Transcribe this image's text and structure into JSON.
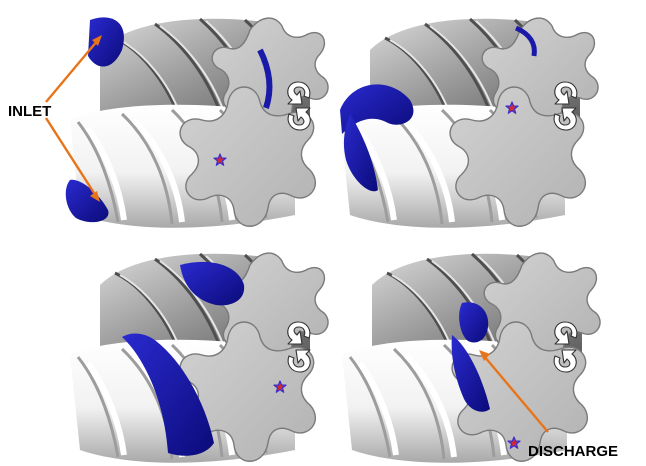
{
  "labels": {
    "inlet": "INLET",
    "discharge": "DISCHARGE"
  },
  "colors": {
    "pocket": "#1a1aa8",
    "pocket_dark": "#0b0b6e",
    "male_rotor_light": "#f7f7f7",
    "male_rotor_shade": "#bdbdbd",
    "female_rotor_light": "#d6d6d6",
    "female_rotor_dark": "#6f6f6f",
    "end_face": "#c4c4c4",
    "arrow": "#e8741a",
    "marker_star_fill": "#cc2a3a",
    "marker_star_edge": "#3a2fd0",
    "rotation_arrow": "#ffffff"
  },
  "panels": [
    {
      "id": "stage-1",
      "pocket": "inlet-open"
    },
    {
      "id": "stage-2",
      "pocket": "trapped"
    },
    {
      "id": "stage-3",
      "pocket": "compressing"
    },
    {
      "id": "stage-4",
      "pocket": "discharge-open"
    }
  ],
  "icons": [
    "rotation-arrow-icon",
    "marker-star-icon"
  ]
}
